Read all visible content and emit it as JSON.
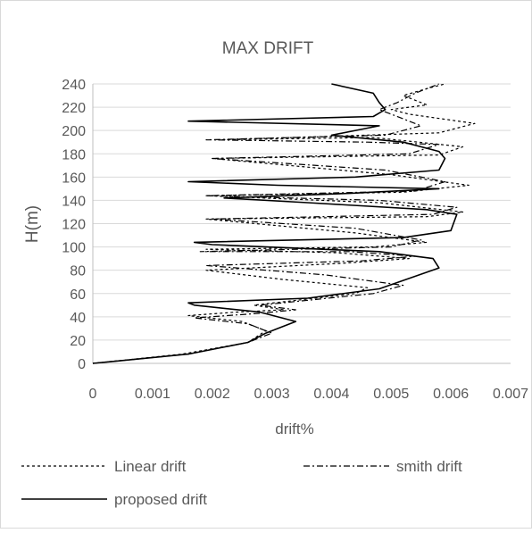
{
  "chart_data": {
    "type": "line",
    "title": "MAX DRIFT",
    "xlabel": "drift%",
    "ylabel": "H(m)",
    "xlim": [
      0,
      0.007
    ],
    "ylim": [
      0,
      240
    ],
    "x_ticks": [
      "0",
      "0.001",
      "0.002",
      "0.003",
      "0.004",
      "0.005",
      "0.006",
      "0.007"
    ],
    "y_ticks": [
      "0",
      "20",
      "40",
      "60",
      "80",
      "100",
      "120",
      "140",
      "160",
      "180",
      "200",
      "220",
      "240"
    ],
    "grid": true,
    "legend_position": "bottom",
    "series": [
      {
        "name": "Linear drift",
        "style": "dashed",
        "points": [
          [
            0,
            0
          ],
          [
            0.0015,
            8
          ],
          [
            0.0026,
            18
          ],
          [
            0.0029,
            28
          ],
          [
            0.0025,
            36
          ],
          [
            0.0016,
            41
          ],
          [
            0.0024,
            44
          ],
          [
            0.0032,
            46
          ],
          [
            0.0027,
            50
          ],
          [
            0.0044,
            60
          ],
          [
            0.0046,
            65
          ],
          [
            0.0032,
            72
          ],
          [
            0.0019,
            80
          ],
          [
            0.0042,
            86
          ],
          [
            0.0053,
            90
          ],
          [
            0.0041,
            95
          ],
          [
            0.0019,
            98
          ],
          [
            0.0047,
            100
          ],
          [
            0.0056,
            104
          ],
          [
            0.0044,
            112
          ],
          [
            0.0019,
            124
          ],
          [
            0.0056,
            126
          ],
          [
            0.0062,
            130
          ],
          [
            0.0048,
            138
          ],
          [
            0.0019,
            144
          ],
          [
            0.0052,
            147
          ],
          [
            0.0063,
            153
          ],
          [
            0.005,
            162
          ],
          [
            0.002,
            176
          ],
          [
            0.0058,
            179
          ],
          [
            0.0062,
            186
          ],
          [
            0.0047,
            194
          ],
          [
            0.0021,
            192
          ],
          [
            0.0058,
            198
          ],
          [
            0.0064,
            206
          ],
          [
            0.0053,
            214
          ],
          [
            0.005,
            218
          ],
          [
            0.0056,
            222
          ],
          [
            0.0052,
            230
          ],
          [
            0.0056,
            236
          ],
          [
            0.0059,
            240
          ]
        ]
      },
      {
        "name": "smith drift",
        "style": "dashdot",
        "points": [
          [
            0,
            0
          ],
          [
            0.0016,
            8
          ],
          [
            0.0026,
            18
          ],
          [
            0.003,
            26
          ],
          [
            0.0026,
            34
          ],
          [
            0.0017,
            39
          ],
          [
            0.0028,
            43
          ],
          [
            0.0034,
            46
          ],
          [
            0.0028,
            50
          ],
          [
            0.0047,
            60
          ],
          [
            0.0052,
            67
          ],
          [
            0.0039,
            76
          ],
          [
            0.0019,
            84
          ],
          [
            0.0045,
            88
          ],
          [
            0.0054,
            92
          ],
          [
            0.0043,
            96
          ],
          [
            0.0018,
            96
          ],
          [
            0.005,
            100
          ],
          [
            0.0055,
            106
          ],
          [
            0.0044,
            116
          ],
          [
            0.002,
            124
          ],
          [
            0.0057,
            128
          ],
          [
            0.0061,
            134
          ],
          [
            0.0048,
            140
          ],
          [
            0.0019,
            144
          ],
          [
            0.0054,
            148
          ],
          [
            0.0059,
            156
          ],
          [
            0.0049,
            166
          ],
          [
            0.002,
            176
          ],
          [
            0.0053,
            180
          ],
          [
            0.0058,
            188
          ],
          [
            0.0046,
            190
          ],
          [
            0.0019,
            192
          ],
          [
            0.0049,
            196
          ],
          [
            0.0055,
            204
          ],
          [
            0.005,
            214
          ],
          [
            0.0048,
            218
          ],
          [
            0.0051,
            224
          ],
          [
            0.0054,
            232
          ],
          [
            0.0058,
            240
          ]
        ]
      },
      {
        "name": "proposed drift",
        "style": "solid",
        "points": [
          [
            0,
            0
          ],
          [
            0.0016,
            8
          ],
          [
            0.0026,
            18
          ],
          [
            0.0029,
            26
          ],
          [
            0.0031,
            30
          ],
          [
            0.0034,
            36
          ],
          [
            0.0028,
            44
          ],
          [
            0.0017,
            50
          ],
          [
            0.0016,
            52
          ],
          [
            0.0036,
            56
          ],
          [
            0.0048,
            64
          ],
          [
            0.0058,
            82
          ],
          [
            0.0057,
            90
          ],
          [
            0.0048,
            96
          ],
          [
            0.002,
            102
          ],
          [
            0.0017,
            104
          ],
          [
            0.0052,
            108
          ],
          [
            0.006,
            114
          ],
          [
            0.0061,
            128
          ],
          [
            0.0056,
            132
          ],
          [
            0.0036,
            138
          ],
          [
            0.0022,
            142
          ],
          [
            0.0043,
            146
          ],
          [
            0.0058,
            150
          ],
          [
            0.0031,
            153
          ],
          [
            0.0016,
            156
          ],
          [
            0.0044,
            160
          ],
          [
            0.0058,
            166
          ],
          [
            0.0059,
            176
          ],
          [
            0.0058,
            182
          ],
          [
            0.0052,
            190
          ],
          [
            0.004,
            196
          ],
          [
            0.0048,
            204
          ],
          [
            0.0016,
            208
          ],
          [
            0.0047,
            212
          ],
          [
            0.0049,
            218
          ],
          [
            0.0048,
            224
          ],
          [
            0.0047,
            232
          ],
          [
            0.004,
            240
          ]
        ]
      }
    ]
  }
}
